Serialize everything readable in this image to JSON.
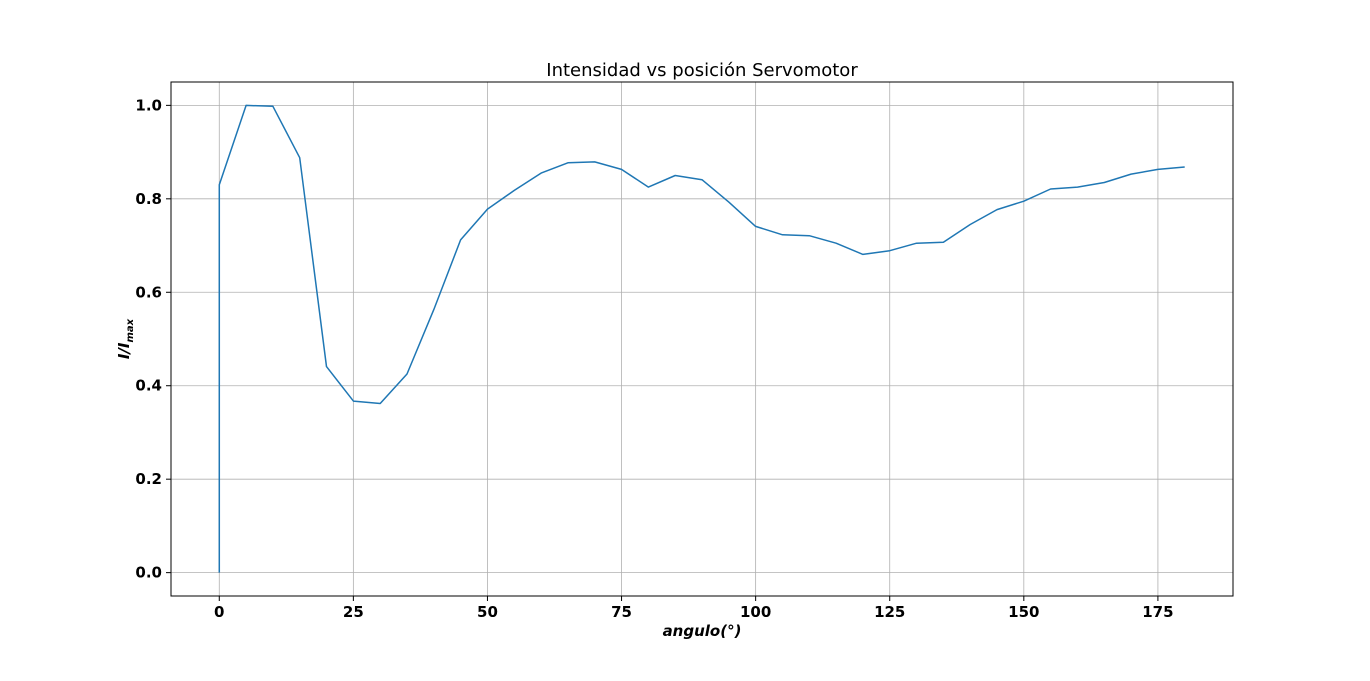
{
  "chart_data": {
    "type": "line",
    "title": "Intensidad vs posición Servomotor",
    "xlabel": "angulo(°)",
    "ylabel": {
      "base": "I/I",
      "sub": "max"
    },
    "xlim": [
      -9,
      189
    ],
    "ylim": [
      -0.05,
      1.05
    ],
    "xticks": [
      0,
      25,
      50,
      75,
      100,
      125,
      150,
      175
    ],
    "yticks": [
      0.0,
      0.2,
      0.4,
      0.6,
      0.8,
      1.0
    ],
    "ytick_labels": [
      "0.0",
      "0.2",
      "0.4",
      "0.6",
      "0.8",
      "1.0"
    ],
    "grid": true,
    "series": [
      {
        "color": "#1f77b4",
        "x": [
          0,
          0,
          5,
          10,
          15,
          20,
          25,
          30,
          35,
          40,
          45,
          50,
          55,
          60,
          65,
          70,
          75,
          80,
          85,
          90,
          95,
          100,
          105,
          110,
          115,
          120,
          125,
          130,
          135,
          140,
          145,
          150,
          155,
          160,
          165,
          170,
          175,
          180
        ],
        "y": [
          0.0,
          0.83,
          1.0,
          0.998,
          0.888,
          0.441,
          0.367,
          0.362,
          0.425,
          0.563,
          0.712,
          0.778,
          0.818,
          0.855,
          0.877,
          0.879,
          0.863,
          0.825,
          0.85,
          0.841,
          0.793,
          0.741,
          0.723,
          0.721,
          0.705,
          0.681,
          0.689,
          0.705,
          0.707,
          0.745,
          0.777,
          0.795,
          0.821,
          0.825,
          0.835,
          0.853,
          0.863,
          0.868
        ]
      }
    ]
  }
}
